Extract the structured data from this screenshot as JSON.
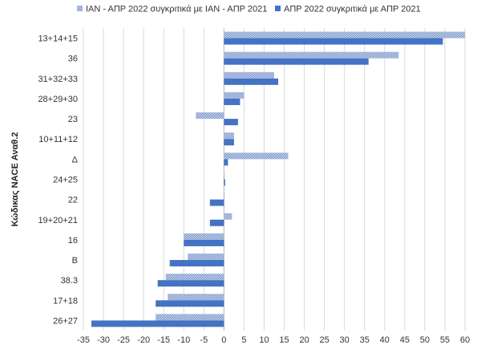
{
  "chart_data": {
    "type": "bar",
    "orientation": "horizontal",
    "title": "",
    "xlabel": "",
    "ylabel": "Κώδικας NACE Αναθ.2",
    "xlim": [
      -35,
      60
    ],
    "xticks": [
      -35,
      -30,
      -25,
      -20,
      -15,
      -10,
      -5,
      0,
      5,
      10,
      15,
      20,
      25,
      30,
      35,
      40,
      45,
      50,
      55,
      60
    ],
    "grid": "vertical",
    "legend_position": "top",
    "categories": [
      "13+14+15",
      "36",
      "31+32+33",
      "28+29+30",
      "23",
      "10+11+12",
      "Δ",
      "24+25",
      "22",
      "19+20+21",
      "16",
      "B",
      "38.3",
      "17+18",
      "26+27"
    ],
    "series": [
      {
        "name": "ΙΑΝ - ΑΠΡ 2022 συγκριτικά με ΙΑΝ - ΑΠΡ 2021",
        "color": "#9bb1d9",
        "pattern": "dotted",
        "values": [
          60,
          43.5,
          12.5,
          5,
          -7,
          2.5,
          16,
          0,
          0,
          2,
          -10,
          -9,
          -14.5,
          -14,
          -17
        ]
      },
      {
        "name": "ΑΠΡ 2022 συγκριτικά με ΑΠΡ 2021",
        "color": "#4472c4",
        "pattern": "solid",
        "values": [
          54.5,
          36,
          13.5,
          4,
          3.5,
          2.5,
          1,
          0.3,
          -3.5,
          -3.5,
          -10,
          -13.5,
          -16.5,
          -17,
          -33
        ]
      }
    ]
  }
}
